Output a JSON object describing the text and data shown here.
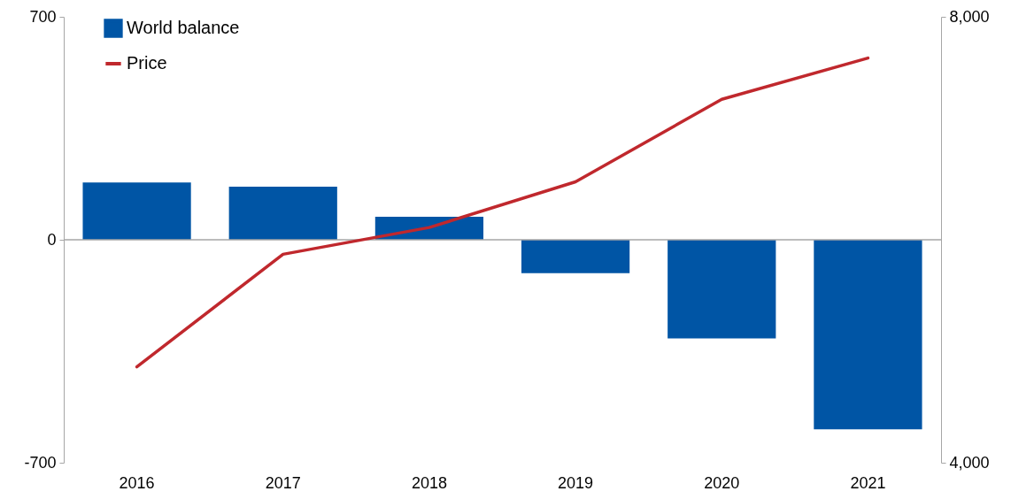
{
  "chart_data": {
    "type": "bar",
    "categories": [
      "2016",
      "2017",
      "2018",
      "2019",
      "2020",
      "2021"
    ],
    "series": [
      {
        "name": "World balance",
        "color": "#0055a5",
        "values": [
          180,
          167,
          72,
          -105,
          -310,
          -595
        ]
      },
      {
        "name": "Price",
        "type": "line",
        "axis": "y2",
        "color": "#c0282d",
        "values": [
          4860,
          5870,
          6110,
          6520,
          7260,
          7630
        ]
      }
    ],
    "ylim": [
      -700,
      700
    ],
    "yticks": [
      -700,
      0,
      700
    ],
    "y2lim": [
      4000,
      8000
    ],
    "y2ticks": [
      {
        "value": 4000,
        "label": "4,000"
      },
      {
        "value": 8000,
        "label": "8,000"
      }
    ],
    "ref_lines": [
      {
        "axis": "y",
        "value": 0,
        "color": "#a6a6a6"
      }
    ],
    "grid": false,
    "legend": "top left",
    "marker": "none",
    "line_style": "solid"
  }
}
